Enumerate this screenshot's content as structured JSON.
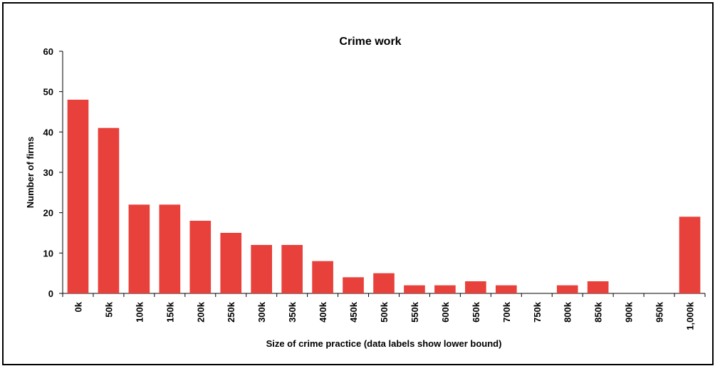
{
  "chart_data": {
    "type": "bar",
    "title": "Crime work",
    "xlabel": "Size of crime practice (data labels show lower bound)",
    "ylabel": "Number of firms",
    "categories": [
      "0k",
      "50k",
      "100k",
      "150k",
      "200k",
      "250k",
      "300k",
      "350k",
      "400k",
      "450k",
      "500k",
      "550k",
      "600k",
      "650k",
      "700k",
      "750k",
      "800k",
      "850k",
      "900k",
      "950k",
      "1,000k"
    ],
    "values": [
      48,
      41,
      22,
      22,
      18,
      15,
      12,
      12,
      8,
      4,
      5,
      2,
      2,
      3,
      2,
      0,
      2,
      3,
      0,
      0,
      19
    ],
    "ylim": [
      0,
      60
    ],
    "yticks": [
      0,
      10,
      20,
      30,
      40,
      50,
      60
    ],
    "grid": false,
    "legend": "none",
    "colors": {
      "bar": "#E8403A",
      "axis": "#000000"
    }
  }
}
